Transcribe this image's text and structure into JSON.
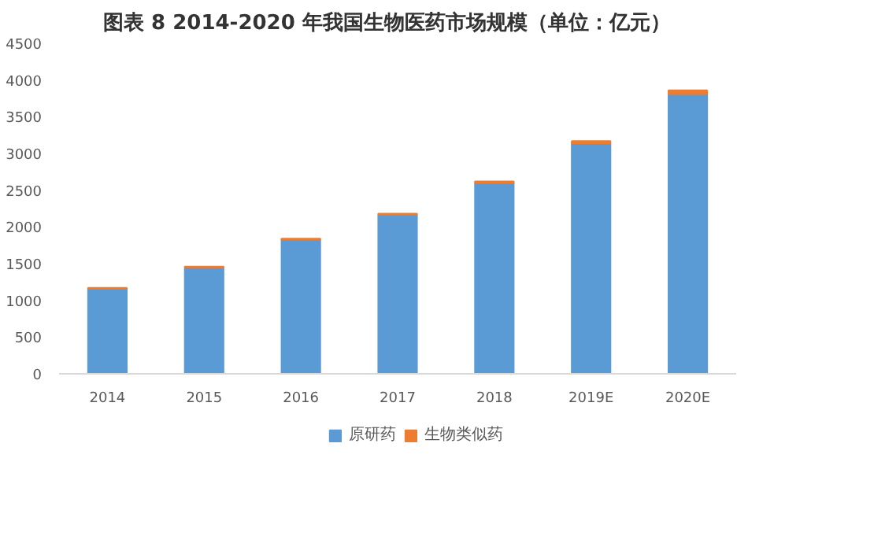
{
  "chart_data": {
    "type": "bar",
    "title": "图表 8    2014-2020 年我国生物医药市场规模（单位：亿元）",
    "categories": [
      "2014",
      "2015",
      "2016",
      "2017",
      "2018",
      "2019E",
      "2020E"
    ],
    "stacked": true,
    "series": [
      {
        "name": "原研药",
        "color": "#5b9bd5",
        "values": [
          1160,
          1450,
          1830,
          2170,
          2600,
          3140,
          3810
        ]
      },
      {
        "name": "生物类似药",
        "color": "#ed7d31",
        "values": [
          10,
          10,
          10,
          10,
          20,
          30,
          50
        ]
      }
    ],
    "ylim": [
      0,
      4500
    ],
    "yticks": [
      0,
      500,
      1000,
      1500,
      2000,
      2500,
      3000,
      3500,
      4000,
      4500
    ],
    "grid": false,
    "legend": "bottom"
  }
}
